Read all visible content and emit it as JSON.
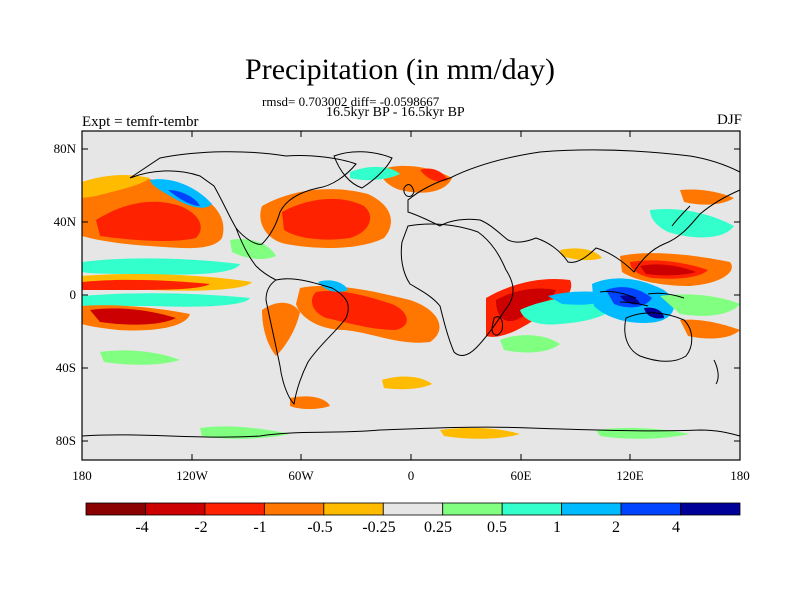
{
  "title": "Precipitation (in mm/day)",
  "stats": "rmsd= 0.703002 diff= -0.0598667",
  "period": "16.5kyr BP - 16.5kyr BP",
  "experiment": "Expt = temfr-tembr",
  "season": "DJF",
  "map": {
    "lat_labels": [
      "80N",
      "40N",
      "0",
      "40S",
      "80S"
    ],
    "lon_labels": [
      "180",
      "120W",
      "60W",
      "0",
      "60E",
      "120E",
      "180"
    ],
    "background_color": "#e6e6e6"
  },
  "colorbar": {
    "tick_labels": [
      "-4",
      "-2",
      "-1",
      "-0.5",
      "-0.25",
      "0.25",
      "0.5",
      "1",
      "2",
      "4"
    ],
    "colors": [
      "#8b0000",
      "#cc0000",
      "#ff2200",
      "#ff7700",
      "#ffbb00",
      "#e6e6e6",
      "#80ff80",
      "#33ffcc",
      "#00bbff",
      "#0044ff",
      "#000099"
    ]
  }
}
